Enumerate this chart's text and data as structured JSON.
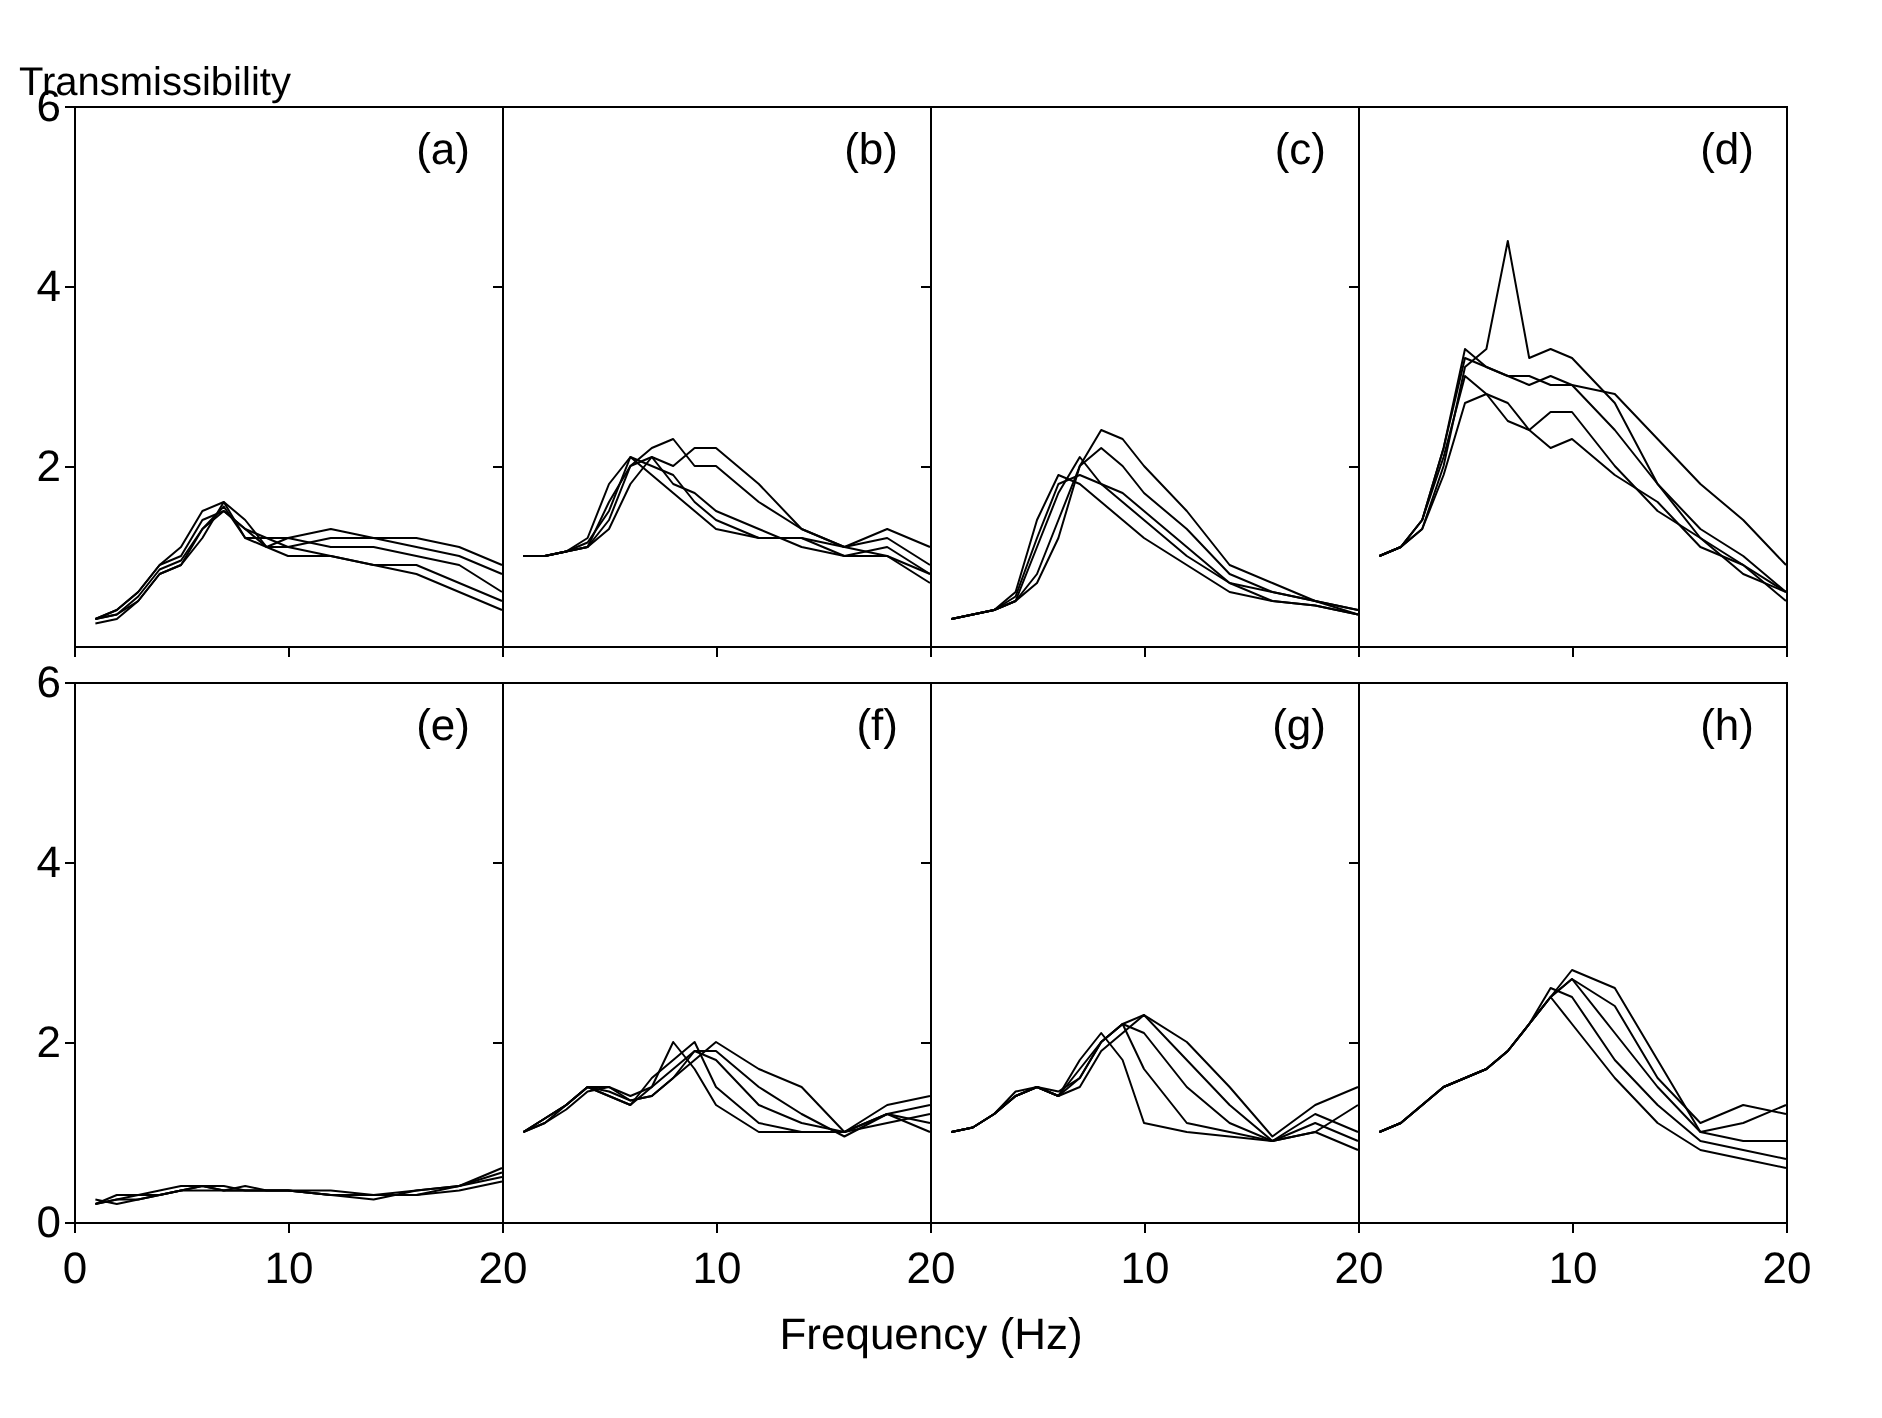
{
  "chart_data": [
    {
      "type": "line",
      "title": "(a)",
      "ylabel": "Transmissibility",
      "x": [
        1,
        2,
        3,
        4,
        5,
        6,
        7,
        8,
        9,
        10,
        12,
        14,
        16,
        18,
        20
      ],
      "xlim": [
        0,
        20
      ],
      "xticks": [
        0,
        10,
        20
      ],
      "ylim": [
        0,
        6
      ],
      "yticks": [
        2,
        4,
        6
      ],
      "tick_labels": "y",
      "grid": false,
      "series": [
        {
          "color": "#000000",
          "values": [
            0.3,
            0.4,
            0.6,
            0.9,
            1.1,
            1.5,
            1.6,
            1.2,
            1.2,
            1.1,
            1.2,
            1.2,
            1.1,
            1.0,
            0.8
          ]
        },
        {
          "color": "#000000",
          "values": [
            0.3,
            0.35,
            0.5,
            0.8,
            0.9,
            1.3,
            1.5,
            1.3,
            1.1,
            1.2,
            1.1,
            1.1,
            1.0,
            0.9,
            0.6
          ]
        },
        {
          "color": "#000000",
          "values": [
            0.25,
            0.3,
            0.5,
            0.8,
            0.9,
            1.2,
            1.6,
            1.4,
            1.1,
            1.0,
            1.0,
            0.9,
            0.9,
            0.7,
            0.5
          ]
        },
        {
          "color": "#000000",
          "values": [
            0.3,
            0.4,
            0.6,
            0.9,
            1.0,
            1.4,
            1.5,
            1.3,
            1.2,
            1.2,
            1.3,
            1.2,
            1.2,
            1.1,
            0.9
          ]
        },
        {
          "color": "#000000",
          "values": [
            0.3,
            0.35,
            0.55,
            0.85,
            0.95,
            1.3,
            1.55,
            1.2,
            1.1,
            1.1,
            1.0,
            0.9,
            0.8,
            0.6,
            0.4
          ]
        }
      ]
    },
    {
      "type": "line",
      "title": "(b)",
      "x": [
        1,
        2,
        3,
        4,
        5,
        6,
        7,
        8,
        9,
        10,
        12,
        14,
        16,
        18,
        20
      ],
      "xlim": [
        0,
        20
      ],
      "xticks": [
        0,
        10,
        20
      ],
      "ylim": [
        0,
        6
      ],
      "yticks": [
        0,
        2,
        4,
        6
      ],
      "tick_labels": false,
      "grid": false,
      "series": [
        {
          "color": "#000000",
          "values": [
            1.0,
            1.0,
            1.05,
            1.2,
            1.8,
            2.1,
            2.0,
            1.9,
            1.6,
            1.4,
            1.2,
            1.2,
            1.0,
            1.1,
            0.8
          ]
        },
        {
          "color": "#000000",
          "values": [
            1.0,
            1.0,
            1.05,
            1.1,
            1.6,
            2.0,
            2.1,
            1.8,
            1.7,
            1.5,
            1.3,
            1.1,
            1.0,
            1.0,
            0.7
          ]
        },
        {
          "color": "#000000",
          "values": [
            1.0,
            1.0,
            1.05,
            1.1,
            1.4,
            2.0,
            2.2,
            2.3,
            2.0,
            2.0,
            1.6,
            1.3,
            1.1,
            1.2,
            0.9
          ]
        },
        {
          "color": "#000000",
          "values": [
            1.0,
            1.0,
            1.05,
            1.1,
            1.3,
            1.8,
            2.1,
            2.0,
            2.2,
            2.2,
            1.8,
            1.3,
            1.1,
            1.3,
            1.1
          ]
        },
        {
          "color": "#000000",
          "values": [
            1.0,
            1.0,
            1.05,
            1.15,
            1.5,
            2.1,
            1.9,
            1.7,
            1.5,
            1.3,
            1.2,
            1.2,
            1.1,
            1.0,
            0.8
          ]
        }
      ]
    },
    {
      "type": "line",
      "title": "(c)",
      "x": [
        1,
        2,
        3,
        4,
        5,
        6,
        7,
        8,
        9,
        10,
        12,
        14,
        16,
        18,
        20
      ],
      "xlim": [
        0,
        20
      ],
      "xticks": [
        0,
        10,
        20
      ],
      "ylim": [
        0,
        6
      ],
      "yticks": [
        0,
        2,
        4,
        6
      ],
      "tick_labels": false,
      "grid": false,
      "series": [
        {
          "color": "#000000",
          "values": [
            0.3,
            0.35,
            0.4,
            0.6,
            1.4,
            1.9,
            1.8,
            1.6,
            1.4,
            1.2,
            0.9,
            0.6,
            0.5,
            0.45,
            0.35
          ]
        },
        {
          "color": "#000000",
          "values": [
            0.3,
            0.35,
            0.4,
            0.5,
            1.1,
            1.7,
            2.1,
            1.8,
            1.7,
            1.5,
            1.1,
            0.7,
            0.6,
            0.5,
            0.4
          ]
        },
        {
          "color": "#000000",
          "values": [
            0.3,
            0.35,
            0.4,
            0.5,
            0.8,
            1.4,
            2.0,
            2.4,
            2.3,
            2.0,
            1.5,
            0.9,
            0.7,
            0.5,
            0.4
          ]
        },
        {
          "color": "#000000",
          "values": [
            0.3,
            0.35,
            0.4,
            0.5,
            0.7,
            1.2,
            2.0,
            2.2,
            2.0,
            1.7,
            1.3,
            0.8,
            0.6,
            0.5,
            0.35
          ]
        },
        {
          "color": "#000000",
          "values": [
            0.3,
            0.35,
            0.4,
            0.55,
            1.2,
            1.8,
            1.9,
            1.8,
            1.6,
            1.4,
            1.0,
            0.7,
            0.5,
            0.45,
            0.35
          ]
        }
      ]
    },
    {
      "type": "line",
      "title": "(d)",
      "x": [
        1,
        2,
        3,
        4,
        5,
        6,
        7,
        8,
        9,
        10,
        12,
        14,
        16,
        18,
        20
      ],
      "xlim": [
        0,
        20
      ],
      "xticks": [
        0,
        10,
        20
      ],
      "ylim": [
        0,
        6
      ],
      "yticks": [
        0,
        2,
        4,
        6
      ],
      "tick_labels": false,
      "grid": false,
      "series": [
        {
          "color": "#000000",
          "values": [
            1.0,
            1.1,
            1.4,
            2.2,
            3.3,
            3.1,
            3.0,
            3.0,
            2.9,
            2.9,
            2.4,
            1.8,
            1.3,
            1.0,
            0.6
          ]
        },
        {
          "color": "#000000",
          "values": [
            1.0,
            1.1,
            1.3,
            2.0,
            3.1,
            3.3,
            4.5,
            3.2,
            3.3,
            3.2,
            2.7,
            1.8,
            1.2,
            0.9,
            0.5
          ]
        },
        {
          "color": "#000000",
          "values": [
            1.0,
            1.1,
            1.4,
            2.1,
            3.0,
            2.8,
            2.7,
            2.4,
            2.6,
            2.6,
            2.0,
            1.5,
            1.2,
            0.8,
            0.6
          ]
        },
        {
          "color": "#000000",
          "values": [
            1.0,
            1.1,
            1.3,
            1.9,
            2.7,
            2.8,
            2.5,
            2.4,
            2.2,
            2.3,
            1.9,
            1.6,
            1.1,
            0.9,
            0.6
          ]
        },
        {
          "color": "#000000",
          "values": [
            1.0,
            1.1,
            1.4,
            2.2,
            3.2,
            3.1,
            3.0,
            2.9,
            3.0,
            2.9,
            2.8,
            2.3,
            1.8,
            1.4,
            0.9
          ]
        }
      ]
    },
    {
      "type": "line",
      "title": "(e)",
      "x": [
        1,
        2,
        3,
        4,
        5,
        6,
        7,
        8,
        9,
        10,
        12,
        14,
        16,
        18,
        20
      ],
      "xlim": [
        0,
        20
      ],
      "xticks": [
        0,
        10,
        20
      ],
      "ylim": [
        0,
        6
      ],
      "yticks": [
        0,
        2,
        4,
        6
      ],
      "grid": false,
      "series": [
        {
          "color": "#000000",
          "values": [
            0.2,
            0.25,
            0.25,
            0.3,
            0.35,
            0.4,
            0.35,
            0.35,
            0.35,
            0.35,
            0.3,
            0.3,
            0.35,
            0.4,
            0.6
          ]
        },
        {
          "color": "#000000",
          "values": [
            0.2,
            0.3,
            0.3,
            0.35,
            0.4,
            0.4,
            0.4,
            0.35,
            0.35,
            0.35,
            0.35,
            0.3,
            0.3,
            0.4,
            0.5
          ]
        },
        {
          "color": "#000000",
          "values": [
            0.25,
            0.2,
            0.25,
            0.3,
            0.35,
            0.35,
            0.35,
            0.35,
            0.35,
            0.35,
            0.3,
            0.3,
            0.3,
            0.35,
            0.45
          ]
        },
        {
          "color": "#000000",
          "values": [
            0.2,
            0.25,
            0.3,
            0.3,
            0.35,
            0.4,
            0.35,
            0.4,
            0.35,
            0.35,
            0.3,
            0.25,
            0.35,
            0.4,
            0.55
          ]
        }
      ]
    },
    {
      "type": "line",
      "title": "(f)",
      "xlabel": "Frequency (Hz)",
      "x": [
        1,
        2,
        3,
        4,
        5,
        6,
        7,
        8,
        9,
        10,
        12,
        14,
        16,
        18,
        20
      ],
      "xlim": [
        0,
        20
      ],
      "xticks": [
        10,
        20
      ],
      "ylim": [
        0,
        6
      ],
      "yticks": [
        0,
        2,
        4,
        6
      ],
      "tick_labels": "x",
      "grid": false,
      "series": [
        {
          "color": "#000000",
          "values": [
            1.0,
            1.15,
            1.3,
            1.5,
            1.5,
            1.4,
            1.5,
            2.0,
            1.7,
            1.3,
            1.0,
            1.0,
            1.0,
            1.1,
            1.2
          ]
        },
        {
          "color": "#000000",
          "values": [
            1.0,
            1.15,
            1.3,
            1.5,
            1.4,
            1.3,
            1.6,
            1.8,
            2.0,
            1.5,
            1.1,
            1.0,
            1.0,
            1.2,
            1.1
          ]
        },
        {
          "color": "#000000",
          "values": [
            1.0,
            1.1,
            1.3,
            1.5,
            1.4,
            1.3,
            1.5,
            1.7,
            1.9,
            1.8,
            1.3,
            1.1,
            1.0,
            1.2,
            1.3
          ]
        },
        {
          "color": "#000000",
          "values": [
            1.0,
            1.1,
            1.25,
            1.45,
            1.5,
            1.35,
            1.4,
            1.6,
            1.8,
            2.0,
            1.7,
            1.5,
            1.0,
            1.3,
            1.4
          ]
        },
        {
          "color": "#000000",
          "values": [
            1.0,
            1.15,
            1.3,
            1.5,
            1.45,
            1.35,
            1.4,
            1.6,
            1.9,
            1.9,
            1.5,
            1.2,
            0.95,
            1.2,
            1.0
          ]
        }
      ]
    },
    {
      "type": "line",
      "title": "(g)",
      "x": [
        1,
        2,
        3,
        4,
        5,
        6,
        7,
        8,
        9,
        10,
        12,
        14,
        16,
        18,
        20
      ],
      "xlim": [
        0,
        20
      ],
      "xticks": [
        10,
        20
      ],
      "ylim": [
        0,
        6
      ],
      "yticks": [
        0,
        2,
        4,
        6
      ],
      "tick_labels": "x",
      "grid": false,
      "series": [
        {
          "color": "#000000",
          "values": [
            1.0,
            1.05,
            1.2,
            1.4,
            1.5,
            1.4,
            1.8,
            2.1,
            1.8,
            1.1,
            1.0,
            0.95,
            0.9,
            1.0,
            0.8
          ]
        },
        {
          "color": "#000000",
          "values": [
            1.0,
            1.05,
            1.2,
            1.4,
            1.5,
            1.4,
            1.7,
            2.0,
            2.2,
            1.7,
            1.1,
            1.0,
            0.9,
            1.1,
            0.9
          ]
        },
        {
          "color": "#000000",
          "values": [
            1.0,
            1.05,
            1.2,
            1.4,
            1.5,
            1.4,
            1.6,
            2.0,
            2.2,
            2.1,
            1.5,
            1.1,
            0.9,
            1.2,
            1.0
          ]
        },
        {
          "color": "#000000",
          "values": [
            1.0,
            1.05,
            1.2,
            1.45,
            1.5,
            1.4,
            1.5,
            1.9,
            2.1,
            2.3,
            2.0,
            1.5,
            0.95,
            1.3,
            1.5
          ]
        },
        {
          "color": "#000000",
          "values": [
            1.0,
            1.05,
            1.2,
            1.4,
            1.5,
            1.45,
            1.6,
            2.0,
            2.2,
            2.3,
            1.8,
            1.3,
            0.9,
            1.0,
            1.3
          ]
        }
      ]
    },
    {
      "type": "line",
      "title": "(h)",
      "x": [
        1,
        2,
        3,
        4,
        5,
        6,
        7,
        8,
        9,
        10,
        12,
        14,
        16,
        18,
        20
      ],
      "xlim": [
        0,
        20
      ],
      "xticks": [
        10,
        20
      ],
      "ylim": [
        0,
        6
      ],
      "yticks": [
        0,
        2,
        4,
        6
      ],
      "tick_labels": "x",
      "grid": false,
      "series": [
        {
          "color": "#000000",
          "values": [
            1.0,
            1.1,
            1.3,
            1.5,
            1.6,
            1.7,
            1.9,
            2.2,
            2.5,
            2.2,
            1.6,
            1.1,
            0.8,
            0.7,
            0.6
          ]
        },
        {
          "color": "#000000",
          "values": [
            1.0,
            1.1,
            1.3,
            1.5,
            1.6,
            1.7,
            1.9,
            2.2,
            2.6,
            2.5,
            1.8,
            1.3,
            0.9,
            0.8,
            0.7
          ]
        },
        {
          "color": "#000000",
          "values": [
            1.0,
            1.1,
            1.3,
            1.5,
            1.6,
            1.7,
            1.9,
            2.2,
            2.5,
            2.7,
            2.1,
            1.5,
            1.0,
            0.9,
            0.9
          ]
        },
        {
          "color": "#000000",
          "values": [
            1.0,
            1.1,
            1.3,
            1.5,
            1.6,
            1.7,
            1.9,
            2.2,
            2.5,
            2.8,
            2.6,
            1.8,
            1.0,
            1.1,
            1.3
          ]
        },
        {
          "color": "#000000",
          "values": [
            1.0,
            1.1,
            1.3,
            1.5,
            1.6,
            1.7,
            1.9,
            2.2,
            2.5,
            2.7,
            2.4,
            1.6,
            1.1,
            1.3,
            1.2
          ]
        }
      ]
    }
  ]
}
